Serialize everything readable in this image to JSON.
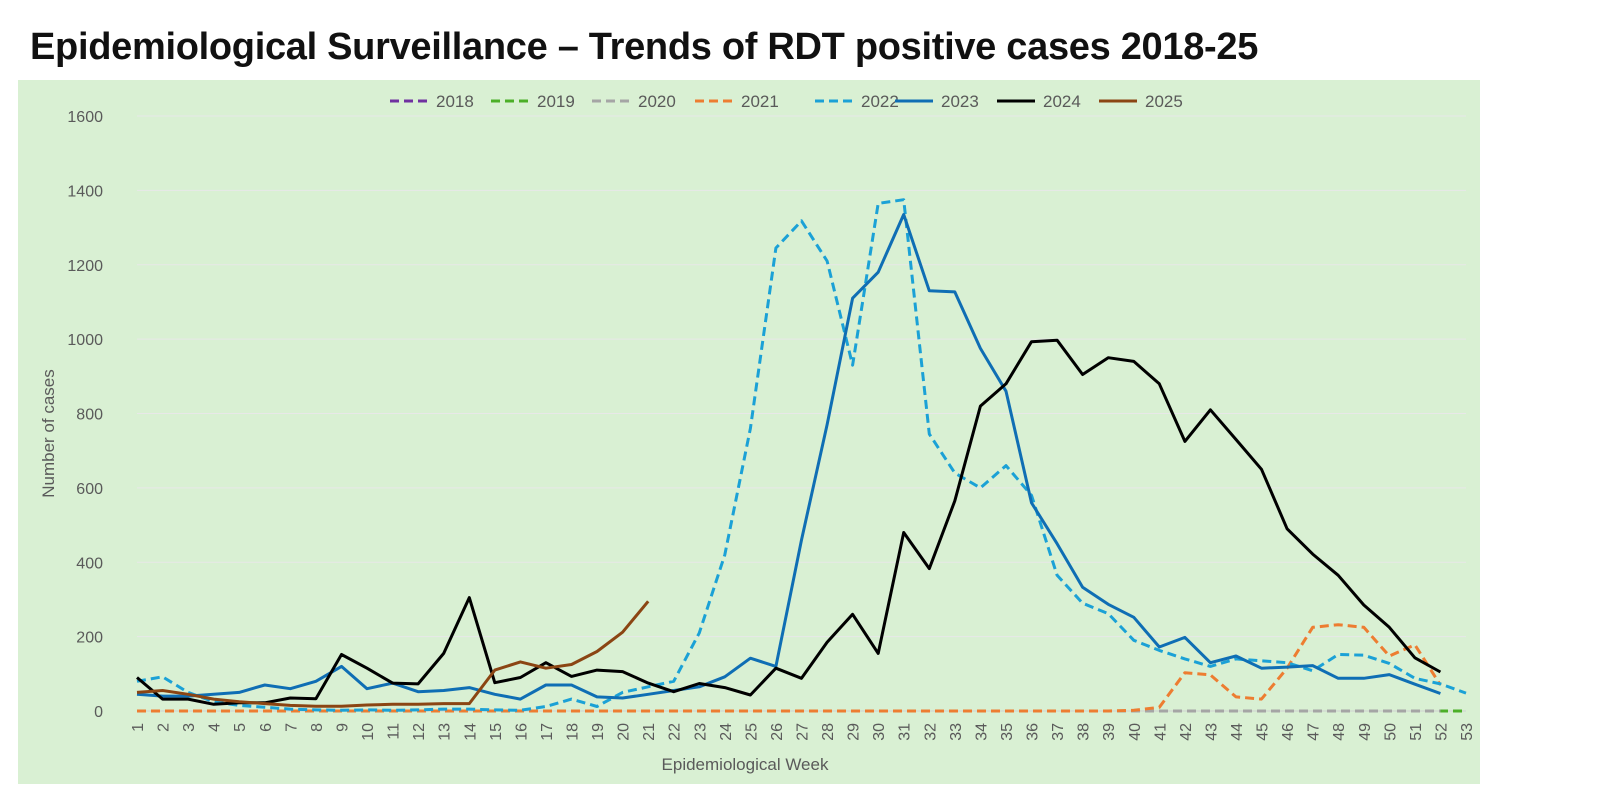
{
  "title": "Epidemiological Surveillance – Trends of RDT positive cases 2018-25",
  "chart_data": {
    "type": "line",
    "xlabel": "Epidemiological Week",
    "ylabel": "Number of cases",
    "ylim": [
      0,
      1600
    ],
    "yticks": [
      0,
      200,
      400,
      600,
      800,
      1000,
      1200,
      1400,
      1600
    ],
    "x": [
      1,
      2,
      3,
      4,
      5,
      6,
      7,
      8,
      9,
      10,
      11,
      12,
      13,
      14,
      15,
      16,
      17,
      18,
      19,
      20,
      21,
      22,
      23,
      24,
      25,
      26,
      27,
      28,
      29,
      30,
      31,
      32,
      33,
      34,
      35,
      36,
      37,
      38,
      39,
      40,
      41,
      42,
      43,
      44,
      45,
      46,
      47,
      48,
      49,
      50,
      51,
      52,
      53
    ],
    "grid": "horizontal",
    "legend_position": "top",
    "series": [
      {
        "name": "2018",
        "color": "#7030a0",
        "dash": true,
        "values": [
          0,
          0,
          0,
          0,
          0,
          0,
          0,
          0,
          0,
          0,
          0,
          0,
          0,
          0,
          0,
          0,
          0,
          0,
          0,
          0,
          0,
          0,
          0,
          0,
          0,
          0,
          0,
          0,
          0,
          0,
          0,
          0,
          0,
          0,
          0,
          0,
          0,
          0,
          0,
          0,
          0,
          0,
          0,
          0,
          0,
          0,
          0,
          0,
          0,
          0,
          0,
          0,
          0
        ]
      },
      {
        "name": "2019",
        "color": "#4caf28",
        "dash": true,
        "values": [
          0,
          0,
          0,
          0,
          0,
          0,
          0,
          0,
          0,
          0,
          0,
          0,
          0,
          0,
          0,
          0,
          0,
          0,
          0,
          0,
          0,
          0,
          0,
          0,
          0,
          0,
          0,
          0,
          0,
          0,
          0,
          0,
          0,
          0,
          0,
          0,
          0,
          0,
          0,
          0,
          0,
          0,
          0,
          0,
          0,
          0,
          0,
          0,
          0,
          0,
          0,
          0,
          0
        ]
      },
      {
        "name": "2020",
        "color": "#a5a5a5",
        "dash": true,
        "values": [
          0,
          0,
          0,
          0,
          0,
          0,
          0,
          0,
          0,
          0,
          0,
          0,
          0,
          0,
          0,
          0,
          0,
          0,
          0,
          0,
          0,
          0,
          0,
          0,
          0,
          0,
          0,
          0,
          0,
          0,
          0,
          0,
          0,
          0,
          0,
          0,
          0,
          0,
          0,
          0,
          0,
          0,
          0,
          0,
          0,
          0,
          0,
          0,
          0,
          0,
          0,
          0,
          null
        ]
      },
      {
        "name": "2021",
        "color": "#ed7d31",
        "dash": true,
        "values": [
          0,
          0,
          0,
          0,
          0,
          0,
          0,
          0,
          0,
          0,
          0,
          0,
          0,
          0,
          0,
          0,
          0,
          0,
          0,
          0,
          0,
          0,
          0,
          0,
          0,
          0,
          0,
          0,
          0,
          0,
          0,
          0,
          0,
          0,
          0,
          0,
          0,
          0,
          0,
          2,
          10,
          103,
          97,
          38,
          32,
          115,
          225,
          232,
          225,
          148,
          178,
          70,
          null
        ]
      },
      {
        "name": "2022",
        "color": "#1ba1d6",
        "dash": true,
        "values": [
          80,
          92,
          50,
          25,
          15,
          10,
          5,
          3,
          2,
          3,
          2,
          3,
          5,
          5,
          3,
          2,
          12,
          32,
          12,
          50,
          65,
          80,
          210,
          420,
          760,
          1245,
          1318,
          1210,
          930,
          1365,
          1375,
          745,
          640,
          600,
          660,
          580,
          365,
          290,
          262,
          190,
          163,
          140,
          120,
          140,
          135,
          130,
          108,
          152,
          150,
          128,
          88,
          73,
          48
        ]
      },
      {
        "name": "2023",
        "color": "#0f6eb4",
        "dash": false,
        "values": [
          45,
          40,
          40,
          45,
          50,
          70,
          60,
          80,
          120,
          60,
          75,
          52,
          55,
          63,
          45,
          32,
          70,
          70,
          38,
          35,
          45,
          55,
          65,
          92,
          142,
          120,
          460,
          770,
          1110,
          1180,
          1335,
          1130,
          1127,
          975,
          860,
          560,
          450,
          333,
          287,
          252,
          172,
          198,
          130,
          148,
          115,
          118,
          122,
          88,
          88,
          98,
          72,
          47,
          null
        ]
      },
      {
        "name": "2024",
        "color": "#000000",
        "dash": false,
        "values": [
          90,
          32,
          32,
          18,
          22,
          22,
          35,
          33,
          152,
          115,
          75,
          73,
          155,
          305,
          76,
          90,
          130,
          93,
          110,
          106,
          75,
          52,
          74,
          63,
          43,
          115,
          88,
          185,
          260,
          155,
          480,
          383,
          565,
          820,
          880,
          993,
          997,
          905,
          950,
          940,
          880,
          725,
          810,
          730,
          650,
          490,
          422,
          365,
          285,
          225,
          143,
          105,
          null
        ]
      },
      {
        "name": "2025",
        "color": "#8b4513",
        "dash": false,
        "values": [
          50,
          55,
          45,
          32,
          25,
          20,
          15,
          13,
          13,
          16,
          18,
          18,
          20,
          20,
          110,
          132,
          115,
          125,
          160,
          212,
          295,
          null,
          null,
          null,
          null,
          null,
          null,
          null,
          null,
          null,
          null,
          null,
          null,
          null,
          null,
          null,
          null,
          null,
          null,
          null,
          null,
          null,
          null,
          null,
          null,
          null,
          null,
          null,
          null,
          null,
          null,
          null,
          null
        ]
      }
    ]
  }
}
